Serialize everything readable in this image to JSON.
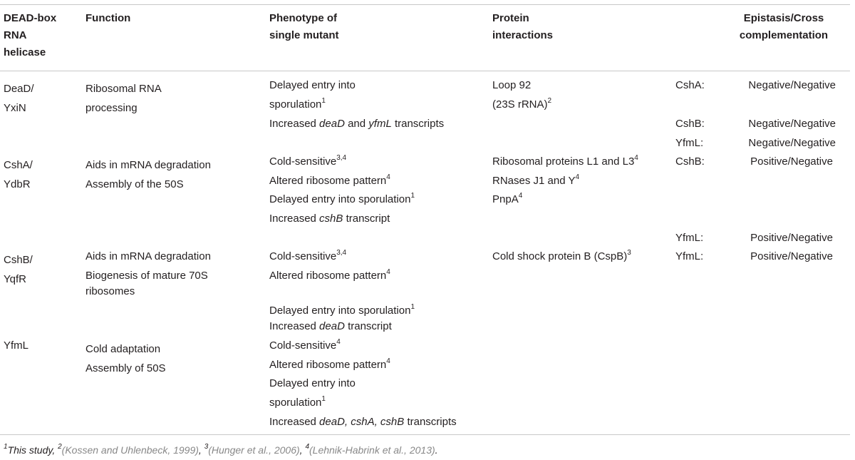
{
  "headers": {
    "helicase": [
      "DEAD-box",
      "RNA",
      "helicase"
    ],
    "function": "Function",
    "phenotype": [
      "Phenotype of",
      "single mutant"
    ],
    "protein": [
      "Protein",
      "interactions"
    ],
    "epistasis": [
      "Epistasis/Cross",
      "complementation"
    ]
  },
  "rows": {
    "dead": {
      "helicase": [
        "DeaD/",
        "YxiN"
      ],
      "function": [
        "Ribosomal RNA",
        "processing"
      ],
      "ph1": "Delayed entry into",
      "ph2": "sporulation",
      "ph2_sup": "1",
      "ph3_pre": "Increased ",
      "ph3_i1": "deaD",
      "ph3_mid": " and ",
      "ph3_i2": "yfmL",
      "ph3_post": " transcripts",
      "pr1": "Loop 92",
      "pr2": "(23S rRNA)",
      "pr2_sup": "2",
      "ep": [
        {
          "name": "CshA:",
          "value": "Negative/Negative"
        },
        {
          "name": "CshB:",
          "value": "Negative/Negative"
        },
        {
          "name": "YfmL:",
          "value": "Negative/Negative"
        }
      ]
    },
    "csha": {
      "helicase": [
        "CshA/",
        "YdbR"
      ],
      "function": [
        "Aids in mRNA degradation",
        "Assembly of the 50S"
      ],
      "ph1": "Cold-sensitive",
      "ph1_sup": "3,4",
      "ph2": "Altered ribosome pattern",
      "ph2_sup": "4",
      "ph3": "Delayed entry into sporulation",
      "ph3_sup": "1",
      "ph4_pre": "Increased ",
      "ph4_i": "cshB",
      "ph4_post": " transcript",
      "pr1": "Ribosomal proteins L1 and L3",
      "pr1_sup": "4",
      "pr2": "RNases J1 and Y",
      "pr2_sup": "4",
      "pr3": "PnpA",
      "pr3_sup": "4",
      "ep": [
        {
          "name": "CshB:",
          "value": "Positive/Negative"
        },
        {
          "name": "YfmL:",
          "value": "Positive/Negative"
        }
      ]
    },
    "cshb": {
      "helicase": [
        "CshB/",
        "YqfR"
      ],
      "function": [
        "Aids in mRNA degradation",
        "Biogenesis of mature 70S",
        "ribosomes"
      ],
      "ph1": "Cold-sensitive",
      "ph1_sup": "3,4",
      "ph2": "Altered ribosome pattern",
      "ph2_sup": "4",
      "ph3": "Delayed entry into sporulation",
      "ph3_sup": "1",
      "ph4_pre": "Increased ",
      "ph4_i": "deaD",
      "ph4_post": " transcript",
      "pr1": "Cold shock protein B (CspB)",
      "pr1_sup": "3",
      "ep": [
        {
          "name": "YfmL:",
          "value": "Positive/Negative"
        }
      ]
    },
    "yfml": {
      "helicase": [
        "YfmL"
      ],
      "function": [
        "Cold adaptation",
        "Assembly of 50S"
      ],
      "ph1": "Cold-sensitive",
      "ph1_sup": "4",
      "ph2": "Altered ribosome pattern",
      "ph2_sup": "4",
      "ph3": "Delayed entry into",
      "ph4": "sporulation",
      "ph4_sup": "1",
      "ph5_pre": "Increased ",
      "ph5_i": "deaD, cshA, cshB",
      "ph5_post": " transcripts"
    }
  },
  "footnote": {
    "s1": "1",
    "t1": "This study, ",
    "s2": "2",
    "r2": "(Kossen and Uhlenbeck, 1999)",
    "sep2": ", ",
    "s3": "3",
    "r3": "(Hunger et al., 2006)",
    "sep3": ", ",
    "s4": "4",
    "r4": "(Lehnik-Habrink et al., 2013)",
    "end": "."
  },
  "colors": {
    "text": "#231f20",
    "rule": "#c8c8c8",
    "reference": "#888888"
  }
}
